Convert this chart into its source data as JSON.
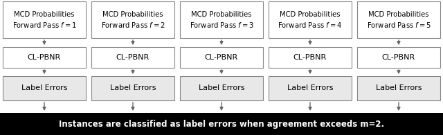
{
  "num_columns": 5,
  "box_labels_top": [
    "MCD Probabilities\nForward Pass $f = 1$",
    "MCD Probabilities\nForward Pass $f = 2$",
    "MCD Probabilities\nForward Pass $f = 3$",
    "MCD Probabilities\nForward Pass $f = 4$",
    "MCD Probabilities\nForward Pass $f = 5$"
  ],
  "box_labels_mid": [
    "CL-PBNR",
    "CL-PBNR",
    "CL-PBNR",
    "CL-PBNR",
    "CL-PBNR"
  ],
  "box_labels_bot": [
    "Label Errors",
    "Label Errors",
    "Label Errors",
    "Label Errors",
    "Label Errors"
  ],
  "bottom_text": "Instances are classified as label errors when agreement exceeds m=2.",
  "top_box_facecolor": "#ffffff",
  "mid_box_facecolor": "#ffffff",
  "bot_box_facecolor": "#e8e8e8",
  "border_color": "#888888",
  "arrow_color": "#666666",
  "bottom_bar_color": "#000000",
  "bottom_text_color": "#ffffff",
  "text_color": "#000000",
  "bg_color": "#ffffff",
  "font_size_top": 7.2,
  "font_size_mid": 8.0,
  "font_size_bot": 8.0,
  "font_size_bottom_bar": 8.5,
  "figsize": [
    6.4,
    1.95
  ],
  "dpi": 100
}
